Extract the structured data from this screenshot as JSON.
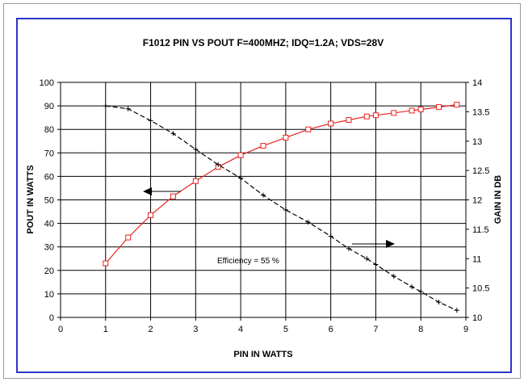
{
  "chart_data": {
    "type": "line",
    "title": "F1012 PIN VS POUT F=400MHZ; IDQ=1.2A; VDS=28V",
    "xlabel": "PIN IN WATTS",
    "ylabel": "POUT IN WATTS",
    "y2label": "GAIN  IN  DB",
    "xlim": [
      0,
      9
    ],
    "ylim": [
      0,
      100
    ],
    "y2lim": [
      10,
      14
    ],
    "x_ticks": [
      "0",
      "1",
      "2",
      "3",
      "4",
      "5",
      "6",
      "7",
      "8",
      "9"
    ],
    "y_ticks": [
      "0",
      "10",
      "20",
      "30",
      "40",
      "50",
      "60",
      "70",
      "80",
      "90",
      "100"
    ],
    "y2_ticks": [
      "10",
      "10.5",
      "11",
      "11.5",
      "12",
      "12.5",
      "13",
      "13.5",
      "14"
    ],
    "grid": true,
    "annotation": "Efficiency = 55 %",
    "series": [
      {
        "axis": "left",
        "color": "#e8231e",
        "marker": "square",
        "x": [
          1.0,
          1.5,
          2.0,
          2.5,
          3.0,
          3.5,
          4.0,
          4.5,
          5.0,
          5.5,
          6.0,
          6.4,
          6.8,
          7.0,
          7.4,
          7.8,
          8.0,
          8.4,
          8.8
        ],
        "values": [
          23,
          34,
          43.5,
          51.5,
          58,
          64,
          69,
          73,
          76.5,
          80,
          82.5,
          84,
          85.5,
          86,
          87,
          88,
          88.5,
          89.5,
          90.5
        ]
      },
      {
        "axis": "right",
        "color": "#000000",
        "marker": "plus",
        "x": [
          1.0,
          1.5,
          2.0,
          2.5,
          3.0,
          3.5,
          4.0,
          4.5,
          5.0,
          5.5,
          6.0,
          6.4,
          6.8,
          7.0,
          7.4,
          7.8,
          8.0,
          8.4,
          8.8
        ],
        "values": [
          13.6,
          13.55,
          13.35,
          13.13,
          12.86,
          12.6,
          12.37,
          12.08,
          11.83,
          11.62,
          11.38,
          11.17,
          11.0,
          10.9,
          10.7,
          10.52,
          10.44,
          10.26,
          10.12
        ]
      }
    ]
  }
}
